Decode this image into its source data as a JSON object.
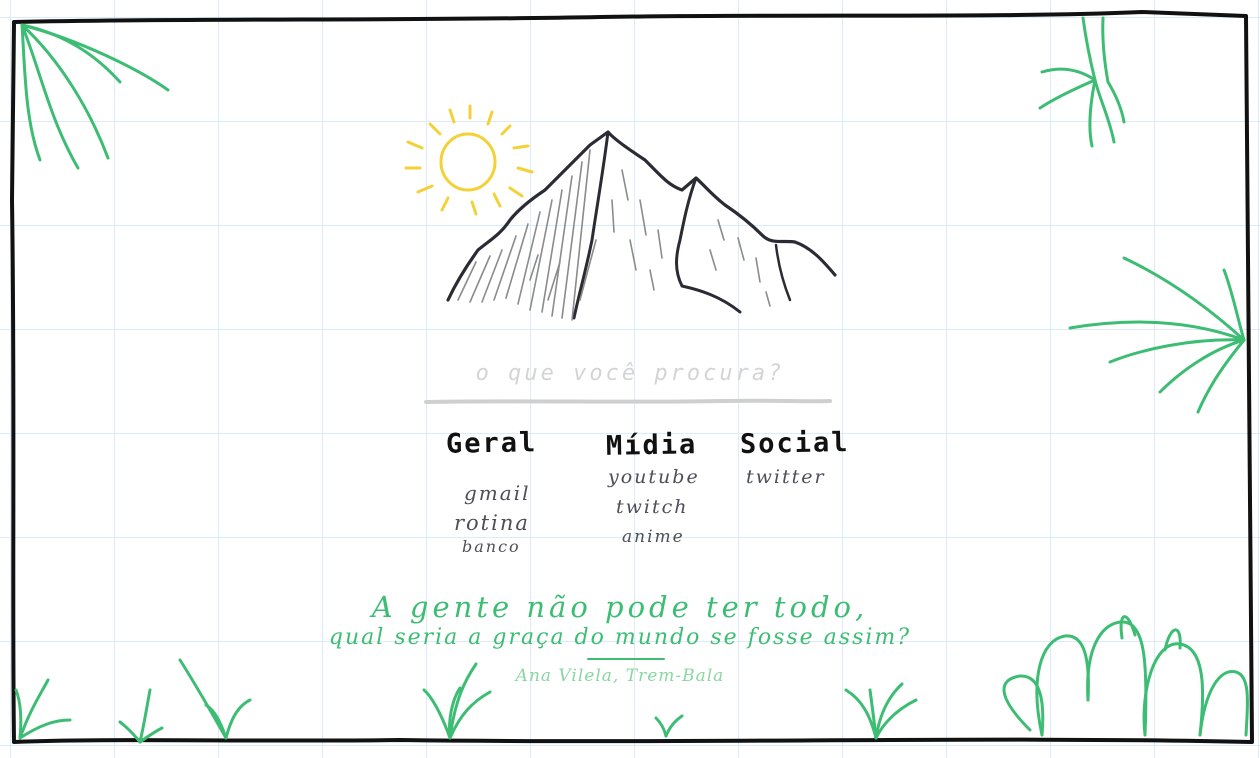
{
  "search": {
    "placeholder": "o que você procura?"
  },
  "categories": [
    {
      "title": "Geral",
      "links": [
        "gmail",
        "rotina",
        "banco"
      ]
    },
    {
      "title": "Mídia",
      "links": [
        "youtube",
        "twitch",
        "anime"
      ]
    },
    {
      "title": "Social",
      "links": [
        "twitter"
      ]
    }
  ],
  "quote": {
    "line1": "A gente não pode ter todo,",
    "line2": "qual seria a graça do mundo se fosse assim?",
    "author": "Ana Vilela, Trem-Bala"
  },
  "colors": {
    "ink": "#111111",
    "link": "#4e4e58",
    "sun": "#f2d238",
    "plants": "#3dbd73",
    "author": "#8ad6a2",
    "grid": "#dcebf7",
    "mountain": "#2b2b33",
    "hatch": "#8b8b8b"
  },
  "icons": [
    "sun-icon",
    "mountain-illustration",
    "grass-icon",
    "leaf-icon"
  ]
}
